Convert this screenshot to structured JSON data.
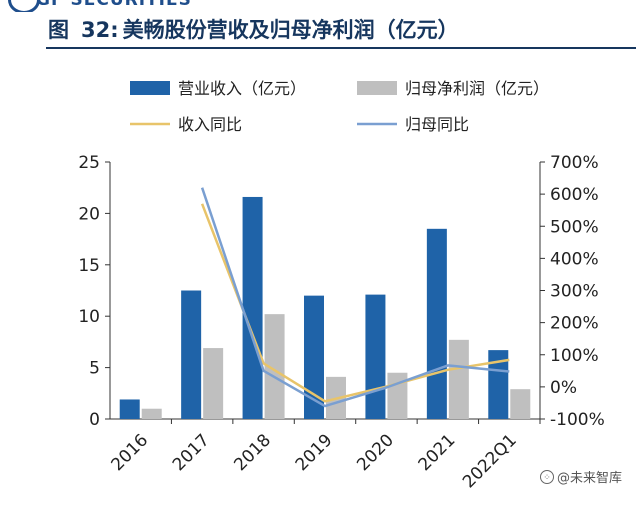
{
  "header": {
    "logo_text": "GF SECURITIES",
    "figure_label": "图",
    "figure_number": "32:",
    "figure_title": "美畅股份营收及归母净利润（亿元）"
  },
  "watermark": {
    "text": "@未来智库",
    "icon": "chat-bubble-icon"
  },
  "colors": {
    "revenue": "#1f63a8",
    "net_profit": "#bfbfbf",
    "revenue_yoy": "#e8c46a",
    "profit_yoy": "#7a9fd1",
    "axis": "#333333"
  },
  "chart_data": {
    "type": "bar",
    "categories": [
      "2016",
      "2017",
      "2018",
      "2019",
      "2020",
      "2021",
      "2022Q1"
    ],
    "series": [
      {
        "name": "营业收入（亿元）",
        "kind": "bar",
        "axis": "left",
        "values": [
          1.9,
          12.5,
          21.6,
          12.0,
          12.1,
          18.5,
          6.7
        ]
      },
      {
        "name": "归母净利润（亿元）",
        "kind": "bar",
        "axis": "left",
        "values": [
          1.0,
          6.9,
          10.2,
          4.1,
          4.5,
          7.7,
          2.9
        ]
      },
      {
        "name": "收入同比",
        "kind": "line",
        "axis": "right",
        "values": [
          null,
          5.7,
          0.73,
          -0.45,
          0.01,
          0.53,
          0.84
        ]
      },
      {
        "name": "归母同比",
        "kind": "line",
        "axis": "right",
        "values": [
          null,
          6.2,
          0.5,
          -0.6,
          -0.02,
          0.67,
          0.48
        ]
      }
    ],
    "y_left": {
      "min": 0,
      "max": 25,
      "ticks": [
        "0",
        "5",
        "10",
        "15",
        "20",
        "25"
      ]
    },
    "y_right": {
      "min": -1.0,
      "max": 7.0,
      "ticks": [
        "-100%",
        "0%",
        "100%",
        "200%",
        "300%",
        "400%",
        "500%",
        "600%",
        "700%"
      ]
    },
    "legend_position": "top",
    "grid": false
  }
}
